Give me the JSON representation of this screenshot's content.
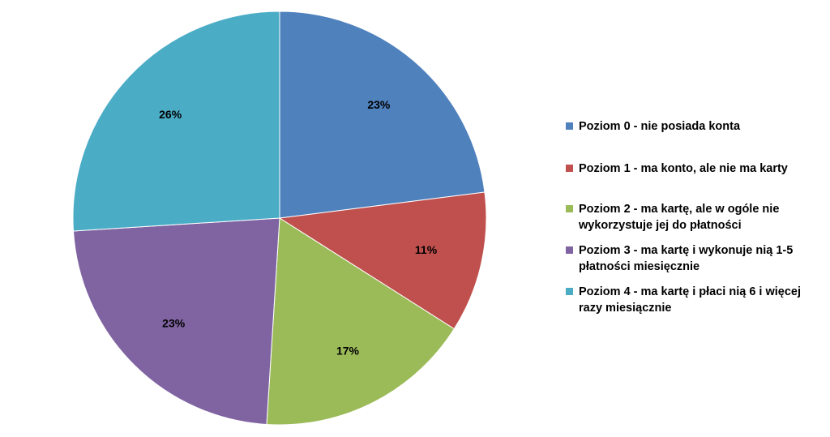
{
  "chart_data": {
    "type": "pie",
    "categories": [
      "Poziom 0 - nie posiada konta",
      "Poziom 1 - ma konto, ale nie ma karty",
      "Poziom 2 - ma kartę, ale w ogóle nie wykorzystuje jej do płatności",
      "Poziom 3 - ma kartę i wykonuje nią 1-5 płatności miesięcznie",
      "Poziom 4 - ma kartę i płaci nią 6 i więcej razy miesiącznie"
    ],
    "values": [
      23,
      11,
      17,
      23,
      26
    ],
    "data_labels": [
      "23%",
      "11%",
      "17%",
      "23%",
      "26%"
    ],
    "colors": [
      "#4F81BD",
      "#C0504D",
      "#9BBB59",
      "#8064A2",
      "#4BACC6"
    ],
    "legend_position": "right",
    "start": "12 o'clock, clockwise"
  },
  "legend": {
    "items": [
      "Poziom 0 - nie posiada konta",
      "Poziom 1 - ma konto, ale nie ma karty",
      "Poziom 2 - ma kartę, ale w ogóle nie wykorzystuje jej do płatności",
      "Poziom 3 - ma kartę i wykonuje nią 1-5 płatności miesięcznie",
      "Poziom 4 - ma kartę i płaci nią 6 i więcej razy miesiącznie"
    ]
  }
}
